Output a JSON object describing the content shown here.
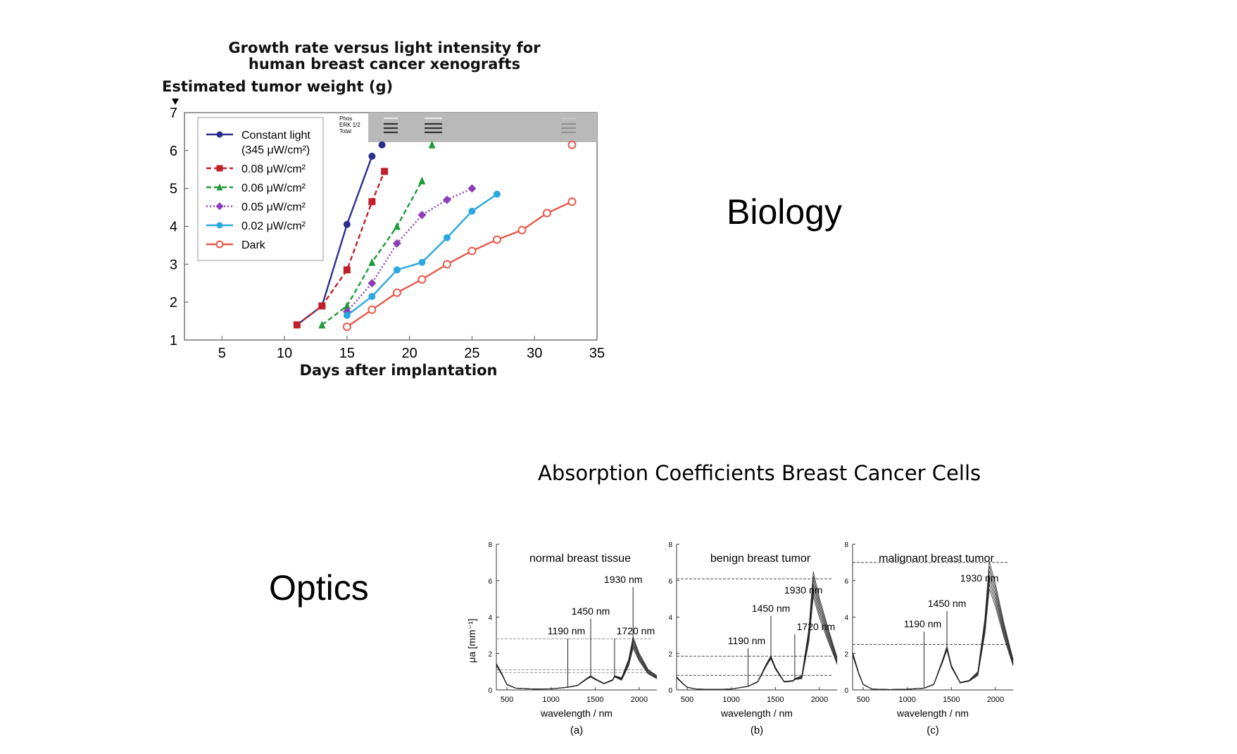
{
  "labels": {
    "biology": "Biology",
    "optics": "Optics"
  },
  "absorption_title": "Absorption Coefficients Breast Cancer Cells",
  "chart_data": [
    {
      "type": "line",
      "title": "Growth rate versus light intensity for",
      "subtitle": "human breast cancer xenografts",
      "ylabel": "Estimated tumor weight (g)",
      "xlabel": "Days after implantation",
      "xlim": [
        2,
        35
      ],
      "ylim": [
        1,
        7
      ],
      "xticks": [
        5,
        10,
        15,
        20,
        25,
        30,
        35
      ],
      "yticks": [
        1,
        2,
        3,
        4,
        5,
        6,
        7
      ],
      "inset_labels": [
        "Phos",
        "ERK 1/2",
        "Total"
      ],
      "legend_position": "top-left",
      "series": [
        {
          "name": "Constant light",
          "name2": "(345 μW/cm²)",
          "color": "#2b2f8f",
          "marker": "circle",
          "dash": "solid",
          "points": [
            [
              11,
              1.4
            ],
            [
              13,
              1.9
            ],
            [
              15,
              4.05
            ],
            [
              17,
              5.85
            ]
          ],
          "top_marker": [
            17.8,
            6.15
          ]
        },
        {
          "name": "0.08 μW/cm²",
          "color": "#c0202a",
          "marker": "square",
          "dash": "dashed",
          "points": [
            [
              11,
              1.4
            ],
            [
              13,
              1.9
            ],
            [
              15,
              2.85
            ],
            [
              17,
              4.65
            ],
            [
              18,
              5.45
            ]
          ]
        },
        {
          "name": "0.06 μW/cm²",
          "color": "#1f9a3a",
          "marker": "triangle",
          "dash": "dashed",
          "points": [
            [
              13,
              1.4
            ],
            [
              15,
              1.9
            ],
            [
              17,
              3.05
            ],
            [
              19,
              4.0
            ],
            [
              21,
              5.2
            ]
          ],
          "top_marker": [
            21.8,
            6.15
          ]
        },
        {
          "name": "0.05 μW/cm²",
          "color": "#8a3fb8",
          "marker": "diamond",
          "dash": "dotted",
          "points": [
            [
              15,
              1.75
            ],
            [
              17,
              2.5
            ],
            [
              19,
              3.55
            ],
            [
              21,
              4.3
            ],
            [
              23,
              4.7
            ],
            [
              25,
              5.0
            ]
          ]
        },
        {
          "name": "0.02 μW/cm²",
          "color": "#2aa8e0",
          "marker": "circle",
          "dash": "solid",
          "points": [
            [
              15,
              1.65
            ],
            [
              17,
              2.15
            ],
            [
              19,
              2.85
            ],
            [
              21,
              3.05
            ],
            [
              23,
              3.7
            ],
            [
              25,
              4.4
            ],
            [
              27,
              4.85
            ]
          ]
        },
        {
          "name": "Dark",
          "color": "#e8584a",
          "marker": "open-circle",
          "dash": "solid",
          "points": [
            [
              15,
              1.35
            ],
            [
              17,
              1.8
            ],
            [
              19,
              2.25
            ],
            [
              21,
              2.6
            ],
            [
              23,
              3.0
            ],
            [
              25,
              3.35
            ],
            [
              27,
              3.65
            ],
            [
              29,
              3.9
            ],
            [
              31,
              4.35
            ],
            [
              33,
              4.65
            ]
          ],
          "top_marker": [
            33,
            6.15
          ]
        }
      ]
    },
    {
      "type": "line",
      "title": "normal breast tissue",
      "xlabel": "wavelength / nm",
      "ylabel": "μa [mm⁻¹]",
      "caption": "(a)",
      "xlim": [
        380,
        2200
      ],
      "ylim": [
        0,
        8
      ],
      "xticks": [
        500,
        1000,
        1500,
        2000
      ],
      "yticks": [
        0,
        2,
        4,
        6,
        8
      ],
      "annotations": [
        {
          "text": "1190 nm",
          "x": 1190
        },
        {
          "text": "1450 nm",
          "x": 1450
        },
        {
          "text": "1720 nm",
          "x": 1720
        },
        {
          "text": "1930 nm",
          "x": 1930
        }
      ],
      "reference_levels": [
        2.8,
        1.1,
        0.95
      ],
      "x": [
        380,
        450,
        500,
        600,
        800,
        1000,
        1190,
        1300,
        1400,
        1450,
        1500,
        1600,
        1700,
        1720,
        1800,
        1880,
        1930,
        2000,
        2100,
        2200
      ],
      "y": [
        1.4,
        0.8,
        0.3,
        0.1,
        0.05,
        0.06,
        0.15,
        0.25,
        0.6,
        0.75,
        0.6,
        0.35,
        0.55,
        0.75,
        0.6,
        1.5,
        2.6,
        1.8,
        1.0,
        0.7
      ]
    },
    {
      "type": "line",
      "title": "benign breast tumor",
      "xlabel": "wavelength / nm",
      "caption": "(b)",
      "xlim": [
        380,
        2200
      ],
      "ylim": [
        0,
        8
      ],
      "xticks": [
        500,
        1000,
        1500,
        2000
      ],
      "yticks": [
        0,
        2,
        4,
        6,
        8
      ],
      "annotations": [
        {
          "text": "1190 nm",
          "x": 1190
        },
        {
          "text": "1450 nm",
          "x": 1450
        },
        {
          "text": "1720 nm",
          "x": 1720
        },
        {
          "text": "1930 nm",
          "x": 1930
        }
      ],
      "reference_levels": [
        6.1,
        1.85,
        0.8
      ],
      "x": [
        380,
        450,
        500,
        600,
        800,
        1000,
        1190,
        1300,
        1400,
        1450,
        1500,
        1600,
        1700,
        1720,
        1800,
        1880,
        1930,
        2000,
        2100,
        2200
      ],
      "y": [
        0.7,
        0.35,
        0.15,
        0.05,
        0.03,
        0.05,
        0.2,
        0.45,
        1.4,
        1.8,
        1.2,
        0.45,
        0.5,
        0.6,
        0.7,
        3.0,
        5.8,
        4.5,
        3.0,
        1.6
      ]
    },
    {
      "type": "line",
      "title": "malignant breast tumor",
      "xlabel": "wavelength / nm",
      "caption": "(c)",
      "xlim": [
        380,
        2200
      ],
      "ylim": [
        0,
        8
      ],
      "xticks": [
        500,
        1000,
        1500,
        2000
      ],
      "yticks": [
        0,
        2,
        4,
        6,
        8
      ],
      "annotations": [
        {
          "text": "1190 nm",
          "x": 1190
        },
        {
          "text": "1450 nm",
          "x": 1450
        },
        {
          "text": "1930 nm",
          "x": 1930
        }
      ],
      "reference_levels": [
        7.0,
        2.5
      ],
      "x": [
        380,
        450,
        500,
        600,
        800,
        1000,
        1190,
        1300,
        1400,
        1450,
        1500,
        1600,
        1700,
        1800,
        1880,
        1930,
        2000,
        2100,
        2200
      ],
      "y": [
        2.0,
        0.9,
        0.3,
        0.05,
        0.02,
        0.04,
        0.1,
        0.3,
        1.6,
        2.3,
        1.3,
        0.4,
        0.5,
        0.9,
        3.5,
        6.3,
        5.2,
        3.2,
        1.5
      ]
    }
  ]
}
